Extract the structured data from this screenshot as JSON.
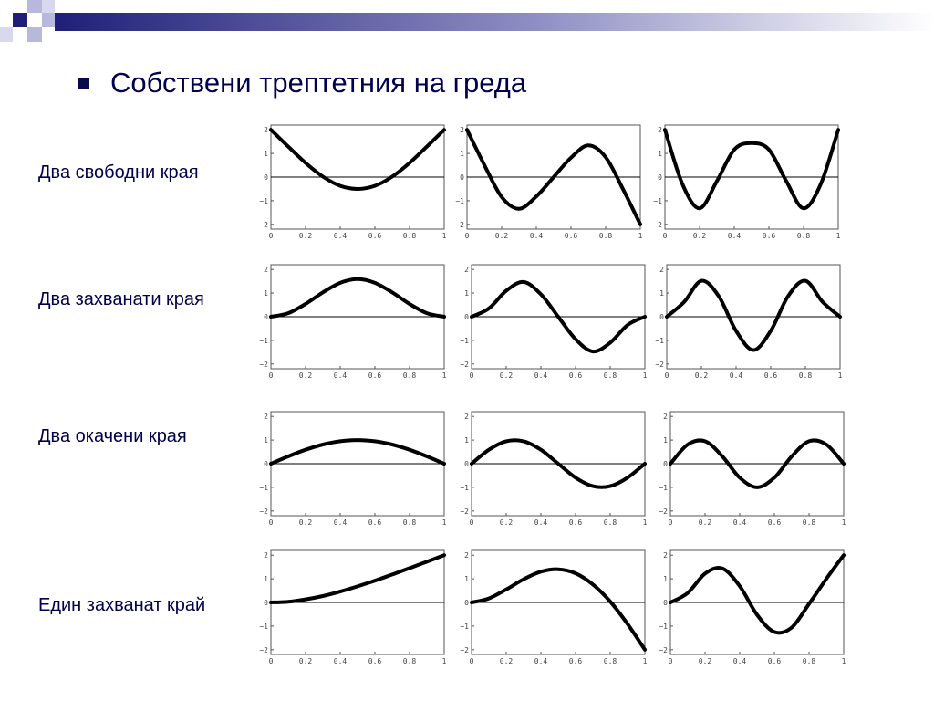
{
  "slide": {
    "title": "Собствени трептетния на греда",
    "accent_color": "#1f1f7a"
  },
  "rows": [
    {
      "label": "Два свободни края"
    },
    {
      "label": "Два захванати края"
    },
    {
      "label": "Два окачени края"
    },
    {
      "label": "Един захванат край"
    }
  ],
  "chart_data": [
    {
      "type": "line",
      "row": "Два свободни края",
      "mode": 1,
      "x": [
        0,
        0.1,
        0.2,
        0.3,
        0.4,
        0.5,
        0.6,
        0.7,
        0.8,
        0.9,
        1
      ],
      "values": [
        2.0,
        1.29,
        0.6,
        0.02,
        -0.37,
        -0.5,
        -0.37,
        0.02,
        0.6,
        1.29,
        2.0
      ],
      "xticks": [
        "0",
        "0.2",
        "0.4",
        "0.6",
        "0.8",
        "1"
      ],
      "yticks": [
        "2",
        "1",
        "0",
        "−1",
        "−2"
      ],
      "xlim": [
        0,
        1
      ],
      "ylim": [
        -2.2,
        2.2
      ],
      "grid": false
    },
    {
      "type": "line",
      "row": "Два свободни края",
      "mode": 2,
      "x": [
        0,
        0.1,
        0.2,
        0.3,
        0.4,
        0.5,
        0.6,
        0.7,
        0.8,
        0.9,
        1
      ],
      "values": [
        2.0,
        0.51,
        -0.84,
        -1.34,
        -0.82,
        0.0,
        0.82,
        1.34,
        0.84,
        -0.51,
        -2.0
      ],
      "xticks": [
        "0",
        "0.2",
        "0.4",
        "0.6",
        "0.8",
        "1"
      ],
      "yticks": [
        "2",
        "1",
        "0",
        "−1",
        "−2"
      ],
      "xlim": [
        0,
        1
      ],
      "ylim": [
        -2.2,
        2.2
      ],
      "grid": false
    },
    {
      "type": "line",
      "row": "Два свободни края",
      "mode": 3,
      "x": [
        0,
        0.1,
        0.2,
        0.3,
        0.4,
        0.5,
        0.6,
        0.7,
        0.8,
        0.9,
        1
      ],
      "values": [
        2.0,
        -0.28,
        -1.32,
        -0.17,
        1.16,
        1.44,
        1.16,
        -0.17,
        -1.32,
        -0.28,
        2.0
      ],
      "xticks": [
        "0",
        "0.2",
        "0.4",
        "0.6",
        "0.8",
        "1"
      ],
      "yticks": [
        "2",
        "1",
        "0",
        "−1",
        "−2"
      ],
      "xlim": [
        0,
        1
      ],
      "ylim": [
        -2.2,
        2.2
      ],
      "grid": false
    },
    {
      "type": "line",
      "row": "Два захванати края",
      "mode": 1,
      "x": [
        0,
        0.1,
        0.2,
        0.3,
        0.4,
        0.5,
        0.6,
        0.7,
        0.8,
        0.9,
        1
      ],
      "values": [
        0,
        0.15,
        0.54,
        1.03,
        1.43,
        1.59,
        1.43,
        1.03,
        0.54,
        0.15,
        0
      ],
      "xticks": [
        "0",
        "0.2",
        "0.4",
        "0.6",
        "0.8",
        "1"
      ],
      "yticks": [
        "2",
        "1",
        "0",
        "−1",
        "−2"
      ],
      "xlim": [
        0,
        1
      ],
      "ylim": [
        -2.2,
        2.2
      ],
      "grid": false
    },
    {
      "type": "line",
      "row": "Два захванати края",
      "mode": 2,
      "x": [
        0,
        0.1,
        0.2,
        0.3,
        0.4,
        0.5,
        0.6,
        0.7,
        0.8,
        0.9,
        1
      ],
      "values": [
        0,
        0.35,
        1.1,
        1.47,
        0.95,
        0,
        -0.95,
        -1.47,
        -1.1,
        -0.35,
        0
      ],
      "xticks": [
        "0",
        "0.2",
        "0.4",
        "0.6",
        "0.8",
        "1"
      ],
      "yticks": [
        "2",
        "1",
        "0",
        "−1",
        "−2"
      ],
      "xlim": [
        0,
        1
      ],
      "ylim": [
        -2.2,
        2.2
      ],
      "grid": false
    },
    {
      "type": "line",
      "row": "Два захванати края",
      "mode": 3,
      "x": [
        0,
        0.1,
        0.2,
        0.3,
        0.4,
        0.5,
        0.6,
        0.7,
        0.8,
        0.9,
        1
      ],
      "values": [
        0,
        0.62,
        1.52,
        0.87,
        -0.6,
        -1.41,
        -0.6,
        0.87,
        1.52,
        0.62,
        0
      ],
      "xticks": [
        "0",
        "0.2",
        "0.4",
        "0.6",
        "0.8",
        "1"
      ],
      "yticks": [
        "2",
        "1",
        "0",
        "−1",
        "−2"
      ],
      "xlim": [
        0,
        1
      ],
      "ylim": [
        -2.2,
        2.2
      ],
      "grid": false
    },
    {
      "type": "line",
      "row": "Два окачени края",
      "mode": 1,
      "x": [
        0,
        0.1,
        0.2,
        0.3,
        0.4,
        0.5,
        0.6,
        0.7,
        0.8,
        0.9,
        1
      ],
      "values": [
        0,
        0.31,
        0.59,
        0.81,
        0.95,
        1.0,
        0.95,
        0.81,
        0.59,
        0.31,
        0
      ],
      "xticks": [
        "0",
        "0.2",
        "0.4",
        "0.6",
        "0.8",
        "1"
      ],
      "yticks": [
        "2",
        "1",
        "0",
        "−1",
        "−2"
      ],
      "xlim": [
        0,
        1
      ],
      "ylim": [
        -2.2,
        2.2
      ],
      "grid": false
    },
    {
      "type": "line",
      "row": "Два окачени края",
      "mode": 2,
      "x": [
        0,
        0.1,
        0.2,
        0.3,
        0.4,
        0.5,
        0.6,
        0.7,
        0.8,
        0.9,
        1
      ],
      "values": [
        0,
        0.59,
        0.95,
        0.95,
        0.59,
        0,
        -0.59,
        -0.95,
        -0.95,
        -0.59,
        0
      ],
      "xticks": [
        "0",
        "0.2",
        "0.4",
        "0.6",
        "0.8",
        "1"
      ],
      "yticks": [
        "2",
        "1",
        "0",
        "−1",
        "−2"
      ],
      "xlim": [
        0,
        1
      ],
      "ylim": [
        -2.2,
        2.2
      ],
      "grid": false
    },
    {
      "type": "line",
      "row": "Два окачени края",
      "mode": 3,
      "x": [
        0,
        0.1,
        0.2,
        0.3,
        0.4,
        0.5,
        0.6,
        0.7,
        0.8,
        0.9,
        1
      ],
      "values": [
        0,
        0.81,
        0.95,
        0.31,
        -0.59,
        -1.0,
        -0.59,
        0.31,
        0.95,
        0.81,
        0
      ],
      "xticks": [
        "0",
        "0.2",
        "0.4",
        "0.6",
        "0.8",
        "1"
      ],
      "yticks": [
        "2",
        "1",
        "0",
        "−1",
        "−2"
      ],
      "xlim": [
        0,
        1
      ],
      "ylim": [
        -2.2,
        2.2
      ],
      "grid": false
    },
    {
      "type": "line",
      "row": "Един захванат край",
      "mode": 1,
      "x": [
        0,
        0.1,
        0.2,
        0.3,
        0.4,
        0.5,
        0.6,
        0.7,
        0.8,
        0.9,
        1
      ],
      "values": [
        0,
        0.03,
        0.13,
        0.27,
        0.46,
        0.68,
        0.92,
        1.18,
        1.45,
        1.72,
        2.0
      ],
      "xticks": [
        "0",
        "0.2",
        "0.4",
        "0.6",
        "0.8",
        "1"
      ],
      "yticks": [
        "2",
        "1",
        "0",
        "−1",
        "−2"
      ],
      "xlim": [
        0,
        1
      ],
      "ylim": [
        -2.2,
        2.2
      ],
      "grid": false
    },
    {
      "type": "line",
      "row": "Един захванат край",
      "mode": 2,
      "x": [
        0,
        0.1,
        0.2,
        0.3,
        0.4,
        0.5,
        0.6,
        0.7,
        0.8,
        0.9,
        1
      ],
      "values": [
        0,
        0.17,
        0.55,
        0.98,
        1.3,
        1.4,
        1.23,
        0.76,
        0.04,
        -0.91,
        -2.0
      ],
      "xticks": [
        "0",
        "0.2",
        "0.4",
        "0.6",
        "0.8",
        "1"
      ],
      "yticks": [
        "2",
        "1",
        "0",
        "−1",
        "−2"
      ],
      "xlim": [
        0,
        1
      ],
      "ylim": [
        -2.2,
        2.2
      ],
      "grid": false
    },
    {
      "type": "line",
      "row": "Един захванат край",
      "mode": 3,
      "x": [
        0,
        0.1,
        0.2,
        0.3,
        0.4,
        0.5,
        0.6,
        0.7,
        0.8,
        0.9,
        1
      ],
      "values": [
        0,
        0.4,
        1.22,
        1.44,
        0.69,
        -0.52,
        -1.25,
        -1.06,
        -0.06,
        1.0,
        2.0
      ],
      "xticks": [
        "0",
        "0.2",
        "0.4",
        "0.6",
        "0.8",
        "1"
      ],
      "yticks": [
        "2",
        "1",
        "0",
        "−1",
        "−2"
      ],
      "xlim": [
        0,
        1
      ],
      "ylim": [
        -2.2,
        2.2
      ],
      "grid": false
    }
  ]
}
